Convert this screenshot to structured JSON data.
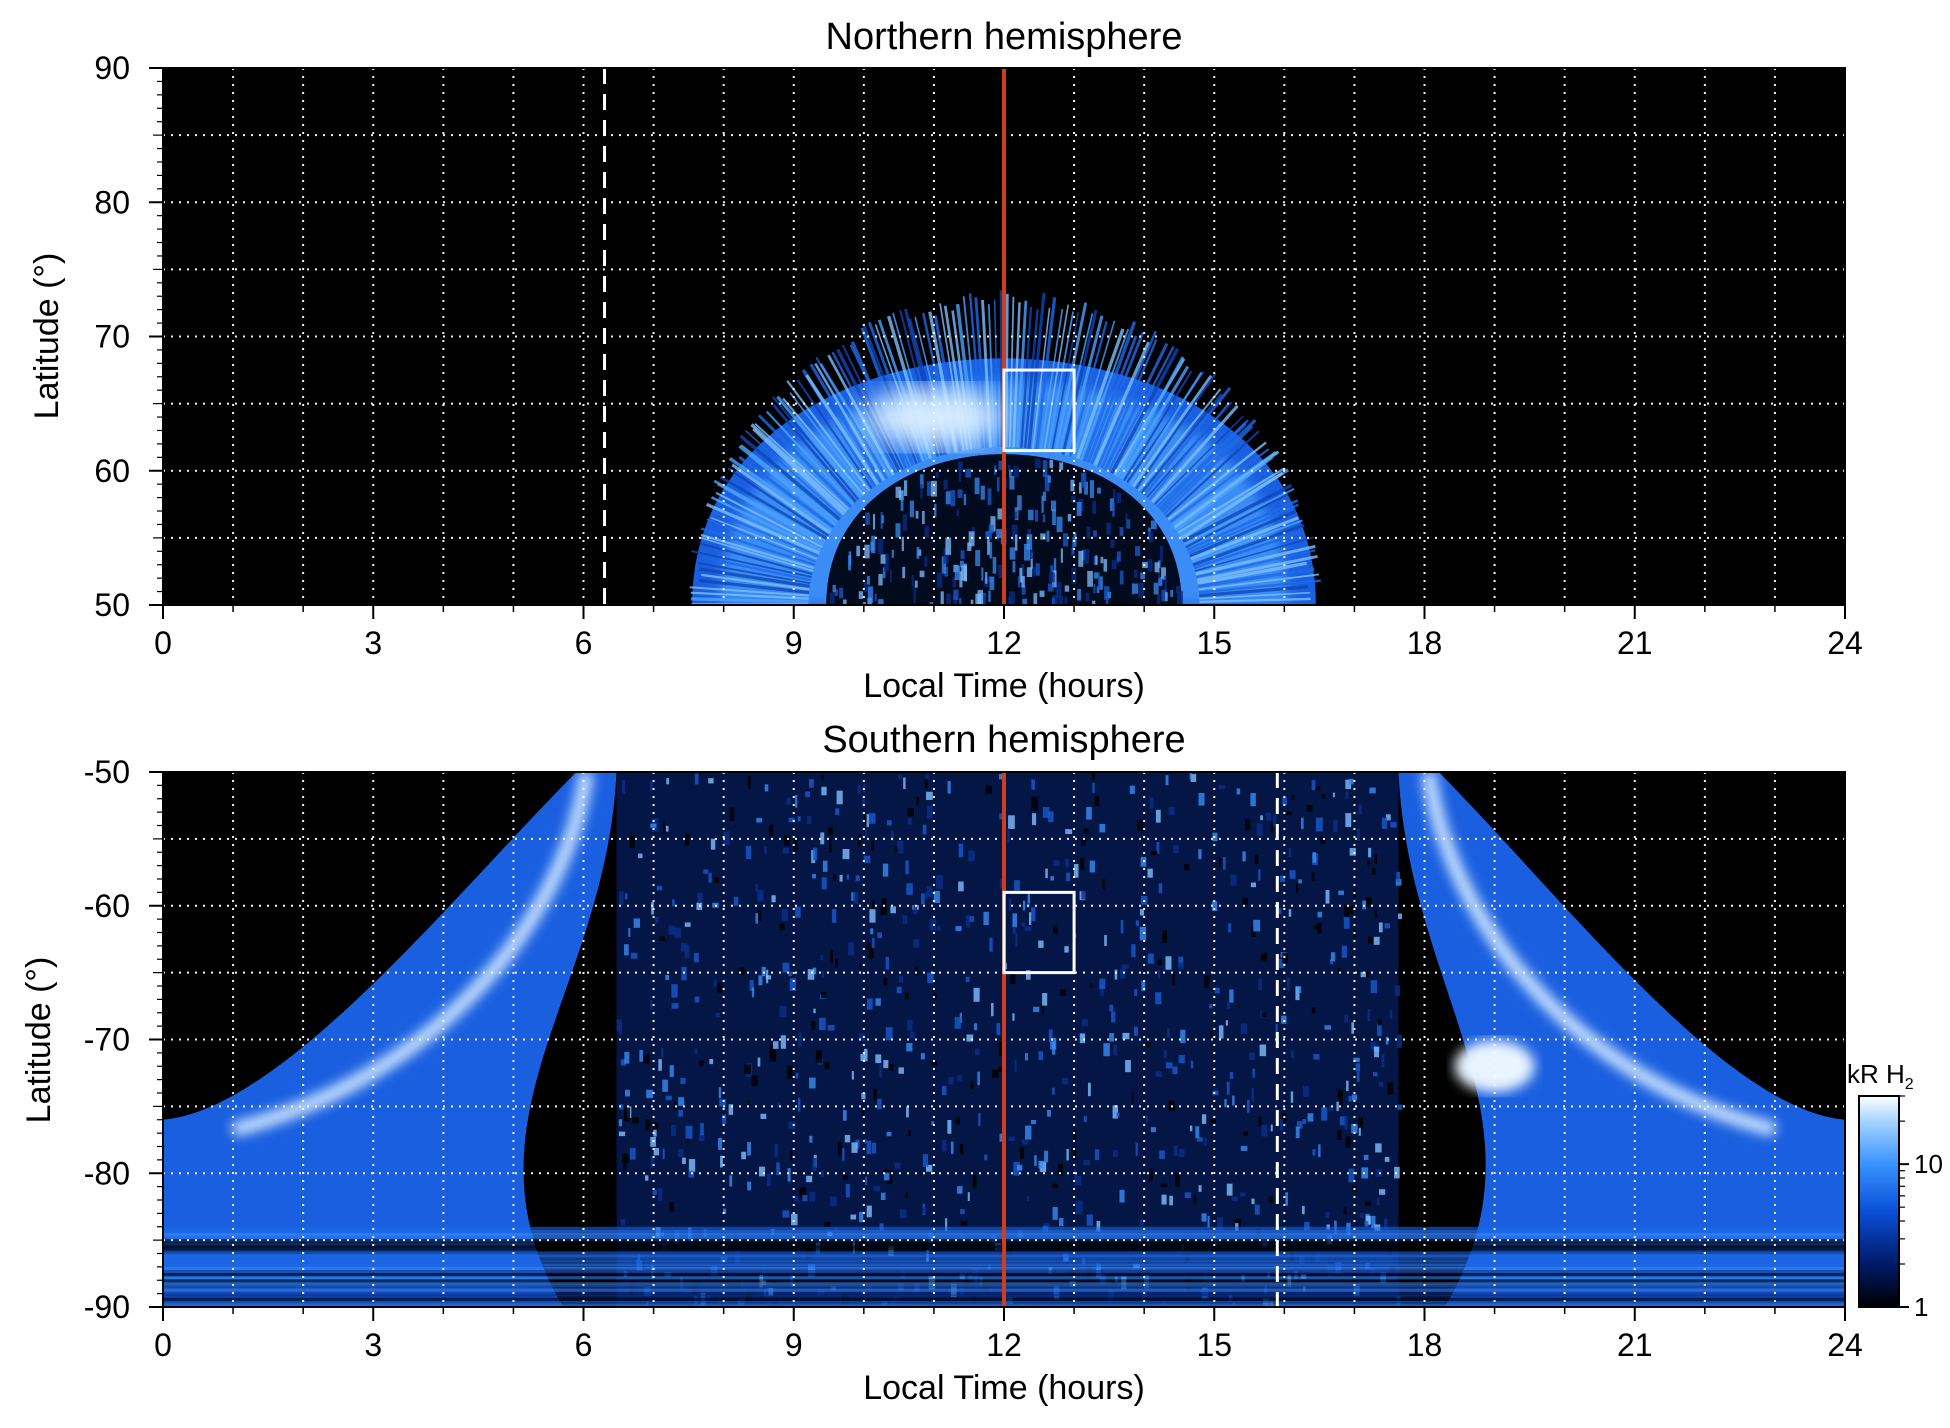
{
  "chart_data": [
    {
      "type": "heatmap",
      "title": "Northern hemisphere",
      "xlabel": "Local Time (hours)",
      "ylabel": "Latitude (°)",
      "xlim": [
        0,
        24
      ],
      "ylim": [
        50,
        90
      ],
      "x_ticks": [
        "0",
        "3",
        "6",
        "9",
        "12",
        "15",
        "18",
        "21",
        "24"
      ],
      "y_ticks": [
        "50",
        "60",
        "70",
        "80",
        "90"
      ],
      "grid": true,
      "annotations": [
        {
          "type": "vertical-line",
          "style": "solid",
          "color": "#d03c1e",
          "x": 12
        },
        {
          "type": "vertical-line",
          "style": "dashed",
          "color": "#ffffff",
          "x": 6.3
        },
        {
          "type": "box",
          "color": "#ffffff",
          "x": [
            12,
            13
          ],
          "y": [
            61.5,
            67.5
          ]
        }
      ],
      "features": {
        "oval": {
          "x_range": [
            7.7,
            16.6
          ],
          "center_x": 12,
          "base_lat": 50,
          "peak_lat": 73,
          "inner_peak_lat": 62
        },
        "bright_spot": {
          "x": 11,
          "y": 64
        }
      }
    },
    {
      "type": "heatmap",
      "title": "Southern hemisphere",
      "xlabel": "Local Time (hours)",
      "ylabel": "Latitude (°)",
      "xlim": [
        0,
        24
      ],
      "ylim": [
        -90,
        -50
      ],
      "x_ticks": [
        "0",
        "3",
        "6",
        "9",
        "12",
        "15",
        "18",
        "21",
        "24"
      ],
      "y_ticks": [
        "-90",
        "-80",
        "-70",
        "-60",
        "-50"
      ],
      "grid": true,
      "annotations": [
        {
          "type": "vertical-line",
          "style": "solid",
          "color": "#d03c1e",
          "x": 12
        },
        {
          "type": "vertical-line",
          "style": "dashed",
          "color": "#ffffff",
          "x": 15.9
        },
        {
          "type": "box",
          "color": "#ffffff",
          "x": [
            12,
            13
          ],
          "y": [
            -65,
            -59
          ]
        }
      ],
      "features": {
        "bright_arc_left": {
          "x_at_top": 5.9,
          "x_at_-76": 1.0
        },
        "bright_arc_right": {
          "x_at_top": 18.2,
          "x_at_-76": 23.0
        },
        "bright_spot": {
          "x": 19,
          "y": -72
        }
      }
    }
  ],
  "colorbar": {
    "label": "kR H",
    "label_sub": "2",
    "scale": "log",
    "range": [
      1,
      30
    ],
    "ticks": [
      "1",
      "10"
    ],
    "colors": [
      "#000000",
      "#001a66",
      "#0a4fd6",
      "#3a93ff",
      "#a6d4ff",
      "#ffffff"
    ]
  }
}
